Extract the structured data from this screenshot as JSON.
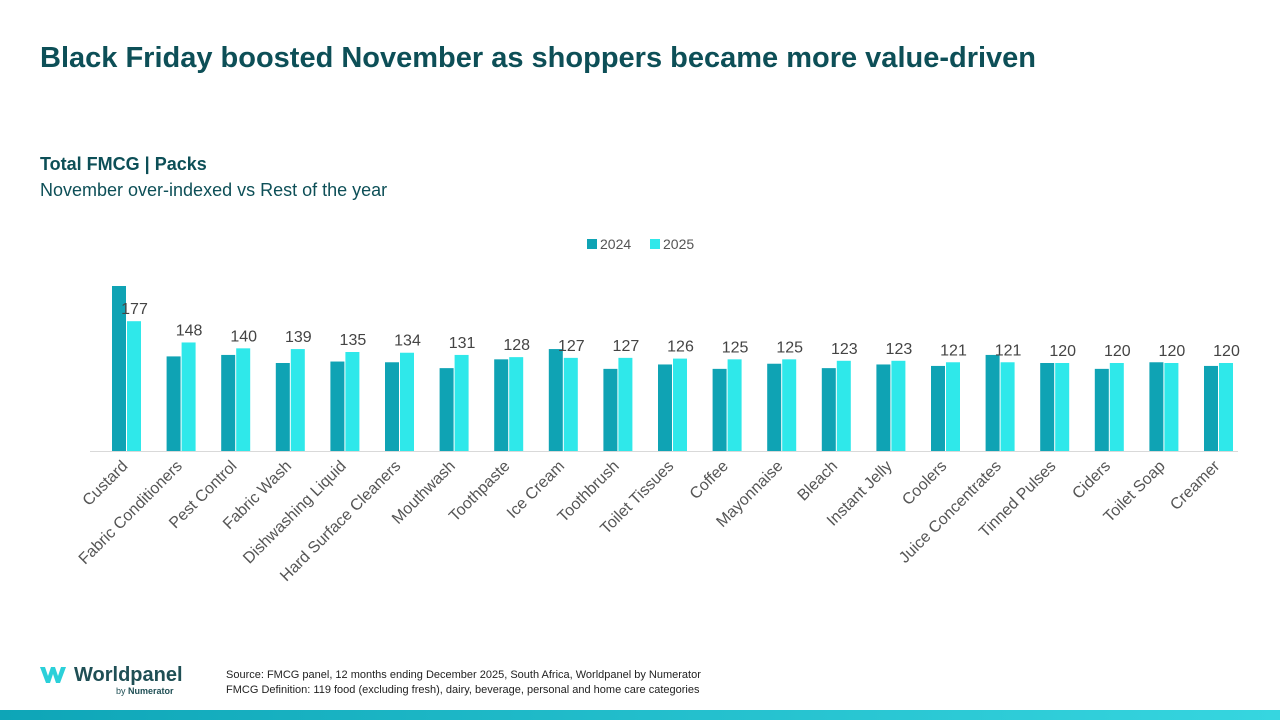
{
  "header": {
    "title": "Black Friday boosted November as shoppers became more value-driven",
    "subtitle": "Total FMCG | Packs",
    "subtitle2": "November over-indexed vs Rest of the year"
  },
  "colors": {
    "series_2024": "#0fa3b4",
    "series_2025": "#2fe8ea",
    "title": "#0d4f57"
  },
  "chart_data": {
    "type": "bar",
    "title": "November over-indexed vs Rest of the year",
    "categories": [
      "Custard",
      "Fabric Conditioners",
      "Pest Control",
      "Fabric Wash",
      "Dishwashing Liquid",
      "Hard Surface Cleaners",
      "Mouthwash",
      "Toothpaste",
      "Ice Cream",
      "Toothbrush",
      "Toilet Tissues",
      "Coffee",
      "Mayonnaise",
      "Bleach",
      "Instant Jelly",
      "Coolers",
      "Juice Concentrates",
      "Tinned Pulses",
      "Ciders",
      "Toilet Soap",
      "Creamer"
    ],
    "series": [
      {
        "name": "2024",
        "values": [
          225,
          129,
          131,
          120,
          122,
          121,
          113,
          125,
          139,
          112,
          118,
          112,
          119,
          113,
          118,
          116,
          131,
          120,
          112,
          121,
          116
        ]
      },
      {
        "name": "2025",
        "values": [
          177,
          148,
          140,
          139,
          135,
          134,
          131,
          128,
          127,
          127,
          126,
          125,
          125,
          123,
          123,
          121,
          121,
          120,
          120,
          120,
          120
        ]
      }
    ],
    "data_labels": [
      "177",
      "148",
      "140",
      "139",
      "135",
      "134",
      "131",
      "128",
      "127",
      "127",
      "126",
      "125",
      "125",
      "123",
      "123",
      "121",
      "121",
      "120",
      "120",
      "120",
      "120"
    ],
    "legend": [
      "2024",
      "2025"
    ],
    "legend_position": "top-center",
    "ylim": [
      0,
      225
    ],
    "grid": false
  },
  "footer": {
    "source_line1": "Source: FMCG panel, 12 months ending December 2025, South Africa, Worldpanel by Numerator",
    "source_line2": "FMCG Definition: 119 food (excluding fresh), dairy, beverage, personal and home care categories"
  },
  "logo": {
    "name": "Worldpanel",
    "by": "by",
    "brand": "Numerator"
  }
}
